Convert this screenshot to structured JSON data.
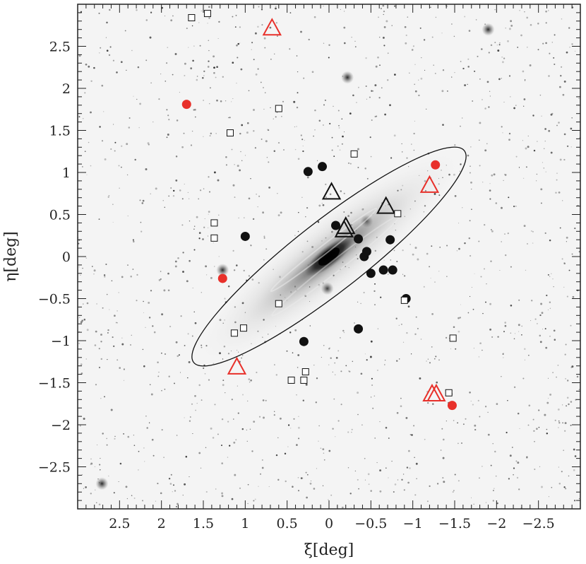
{
  "chart_data": {
    "type": "scatter",
    "title": "",
    "xlabel": "ξ[deg]",
    "ylabel": "η[deg]",
    "xlim": [
      3.0,
      -3.0
    ],
    "ylim": [
      -3.0,
      3.0
    ],
    "x_reversed": true,
    "xticks": [
      2.5,
      2,
      1.5,
      1,
      0.5,
      0,
      -0.5,
      -1,
      -1.5,
      -2,
      -2.5
    ],
    "xtick_labels": [
      "2.5",
      "2",
      "1.5",
      "1",
      "0.5",
      "0",
      "−0.5",
      "−1",
      "−1.5",
      "−2",
      "−2.5"
    ],
    "yticks": [
      2.5,
      2,
      1.5,
      1,
      0.5,
      0,
      -0.5,
      -1,
      -1.5,
      -2,
      -2.5
    ],
    "ytick_labels": [
      "2.5",
      "2",
      "1.5",
      "1",
      "0.5",
      "0",
      "−0.5",
      "−1",
      "−1.5",
      "−2",
      "−2.5"
    ],
    "grid": false,
    "background": "grayscale sky image of a spiral galaxy",
    "colors": {
      "red": "#e8302a",
      "black": "#111111",
      "frame": "#222222"
    },
    "ellipse": {
      "center": [
        0.0,
        0.0
      ],
      "semi_major_deg": 2.05,
      "semi_minor_deg": 0.42,
      "angle_deg": -38
    },
    "series": [
      {
        "marker": "filled-circle",
        "color": "#111111",
        "points": [
          [
            0.25,
            1.01
          ],
          [
            0.08,
            1.07
          ],
          [
            -0.08,
            0.37
          ],
          [
            -0.35,
            0.21
          ],
          [
            -0.42,
            0.0
          ],
          [
            -0.45,
            0.06
          ],
          [
            -0.73,
            0.2
          ],
          [
            -0.5,
            -0.2
          ],
          [
            -0.65,
            -0.16
          ],
          [
            -0.76,
            -0.16
          ],
          [
            -0.92,
            -0.5
          ],
          [
            -0.35,
            -0.86
          ],
          [
            1.0,
            0.24
          ],
          [
            0.3,
            -1.01
          ]
        ]
      },
      {
        "marker": "filled-circle",
        "color": "#e8302a",
        "points": [
          [
            1.7,
            1.81
          ],
          [
            -1.27,
            1.09
          ],
          [
            1.27,
            -0.26
          ],
          [
            -1.47,
            -1.77
          ]
        ]
      },
      {
        "marker": "open-triangle",
        "color": "#111111",
        "points": [
          [
            -0.03,
            0.76
          ],
          [
            -0.2,
            0.35
          ],
          [
            -0.68,
            0.59
          ],
          [
            -0.18,
            0.31
          ]
        ]
      },
      {
        "marker": "open-triangle",
        "color": "#e8302a",
        "points": [
          [
            0.68,
            2.71
          ],
          [
            -1.2,
            0.84
          ],
          [
            1.1,
            -1.32
          ],
          [
            -1.23,
            -1.64
          ],
          [
            -1.28,
            -1.64
          ]
        ]
      },
      {
        "marker": "open-square",
        "color": "#111111",
        "points": [
          [
            1.64,
            2.84
          ],
          [
            1.45,
            2.89
          ],
          [
            0.6,
            1.76
          ],
          [
            1.18,
            1.47
          ],
          [
            -0.3,
            1.22
          ],
          [
            -0.82,
            0.51
          ],
          [
            1.37,
            0.4
          ],
          [
            1.37,
            0.22
          ],
          [
            0.6,
            -0.56
          ],
          [
            1.02,
            -0.85
          ],
          [
            1.13,
            -0.91
          ],
          [
            0.28,
            -1.37
          ],
          [
            0.45,
            -1.47
          ],
          [
            0.3,
            -1.47
          ],
          [
            -1.48,
            -0.97
          ],
          [
            -1.43,
            -1.62
          ],
          [
            -0.9,
            -0.52
          ]
        ]
      }
    ]
  }
}
